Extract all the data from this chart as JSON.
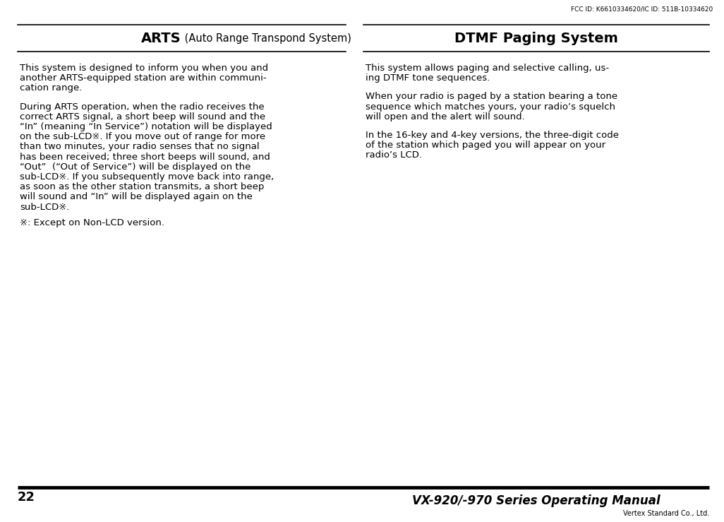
{
  "bg_color": "#ffffff",
  "text_color": "#000000",
  "page_number": "22",
  "fcc_text": "FCC ID: K6610334620/IC ID: 511B-10334620",
  "footer_title": "VX-920/-970 Series Operating Manual",
  "footer_company": "Vertex Standard Co., Ltd.",
  "left_heading_bold": "ARTS",
  "left_heading_rest": " (Auto Range Transpond System)",
  "right_heading": "DTMF Paging System",
  "left_paragraphs": [
    "This system is designed to inform you when you and another ARTS-equipped station are within communication range.",
    "During ARTS operation, when the radio receives the correct ARTS signal, a short beep will sound and the “In” (meaning “In Service”) notation will be displayed on the sub-LCD※. If you move out of range for more than two minutes, your radio senses that no signal has been received; three short beeps will sound, and “Out”  (“Out of Service”) will be displayed on the sub-LCD※. If you subsequently move back into range, as soon as the other station transmits, a short beep will sound and “In” will be displayed again on the sub-LCD※.",
    "※: Except on Non-LCD version."
  ],
  "right_paragraphs": [
    "This system allows paging and selective calling, us-\ning DTMF tone sequences.",
    "When your radio is paged by a station bearing a tone\nsequence which matches yours, your radio’s squelch\nwill open and the alert will sound.",
    "In the 16-key and 4-key versions, the three-digit code\nof the station which paged you will appear on your\nradio’s LCD."
  ],
  "left_para1_lines": [
    "This system is designed to inform you when you and",
    "another ARTS-equipped station are within communi-",
    "cation range."
  ],
  "left_para2_lines": [
    "During ARTS operation, when the radio receives the",
    "correct ARTS signal, a short beep will sound and the",
    "“In” (meaning “In Service”) notation will be displayed",
    "on the sub-LCD※. If you move out of range for more",
    "than two minutes, your radio senses that no signal",
    "has been received; three short beeps will sound, and",
    "“Out”  (“Out of Service”) will be displayed on the",
    "sub-LCD※. If you subsequently move back into range,",
    "as soon as the other station transmits, a short beep",
    "will sound and “In” will be displayed again on the",
    "sub-LCD※."
  ],
  "left_para3_lines": [
    "※: Except on Non-LCD version."
  ],
  "font_size_body": 9.5,
  "font_size_heading_arts": 14,
  "font_size_heading_rest": 10.5,
  "font_size_heading_right": 14,
  "font_size_fcc": 6.5,
  "font_size_footer_title": 12,
  "font_size_page": 13,
  "font_size_company": 7
}
